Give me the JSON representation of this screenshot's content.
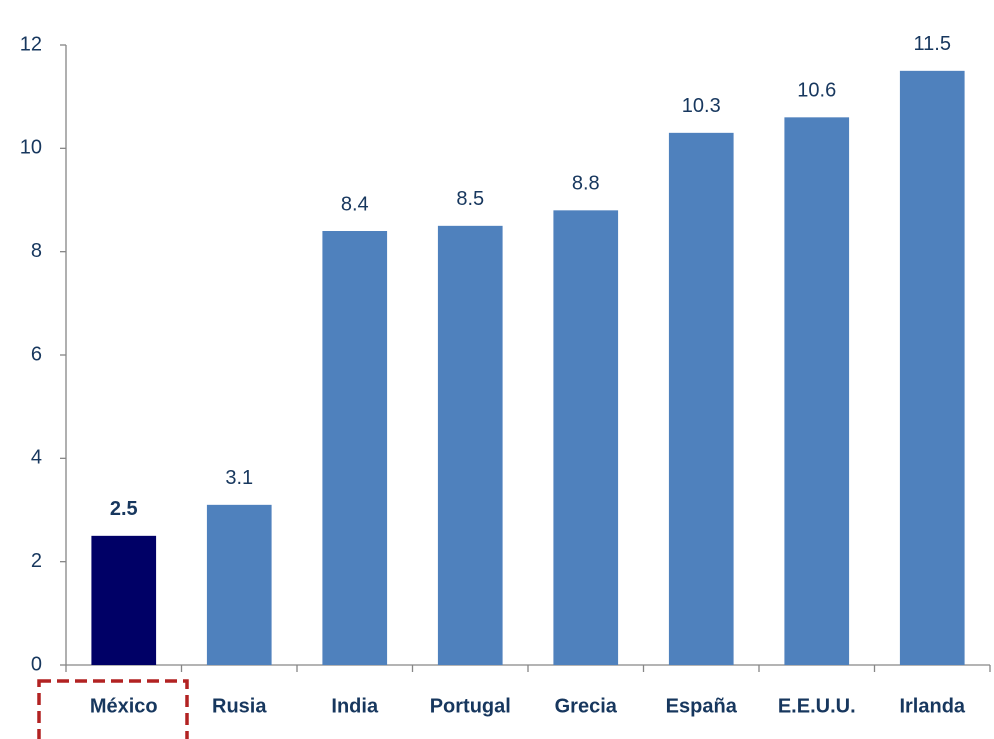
{
  "chart_data": {
    "type": "bar",
    "categories": [
      "México",
      "Rusia",
      "India",
      "Portugal",
      "Grecia",
      "España",
      "E.E.U.U.",
      "Irlanda"
    ],
    "values": [
      2.5,
      3.1,
      8.4,
      8.5,
      8.8,
      10.3,
      10.6,
      11.5
    ],
    "color": "#4f81bd",
    "highlight": {
      "index": 0,
      "color": "#000066"
    },
    "ylim": [
      0,
      12
    ],
    "yticks": [
      0,
      2,
      4,
      6,
      8,
      10,
      12
    ],
    "grid": false
  }
}
